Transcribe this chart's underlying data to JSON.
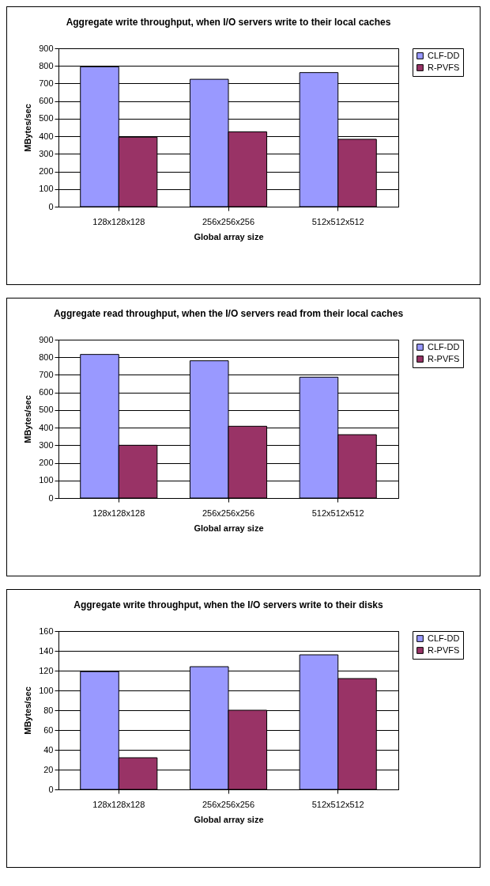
{
  "chart_data": [
    {
      "type": "bar",
      "title": "Aggregate write throughput, when I/O servers write to their local caches",
      "xlabel": "Global array size",
      "ylabel": "MBytes/sec",
      "categories": [
        "128x128x128",
        "256x256x256",
        "512x512x512"
      ],
      "ylim": [
        0,
        900
      ],
      "yticks": [
        0,
        100,
        200,
        300,
        400,
        500,
        600,
        700,
        800,
        900
      ],
      "grid": "y",
      "legend": "right",
      "series": [
        {
          "name": "CLF-DD",
          "color": "#9999ff",
          "values": [
            795,
            724,
            762
          ]
        },
        {
          "name": "R-PVFS",
          "color": "#993366",
          "values": [
            395,
            425,
            383
          ]
        }
      ]
    },
    {
      "type": "bar",
      "title": "Aggregate read throughput, when the I/O servers read from their local caches",
      "xlabel": "Global array size",
      "ylabel": "MBytes/sec",
      "categories": [
        "128x128x128",
        "256x256x256",
        "512x512x512"
      ],
      "ylim": [
        0,
        900
      ],
      "yticks": [
        0,
        100,
        200,
        300,
        400,
        500,
        600,
        700,
        800,
        900
      ],
      "grid": "y",
      "legend": "right",
      "series": [
        {
          "name": "CLF-DD",
          "color": "#9999ff",
          "values": [
            816,
            780,
            687
          ]
        },
        {
          "name": "R-PVFS",
          "color": "#993366",
          "values": [
            300,
            408,
            360
          ]
        }
      ]
    },
    {
      "type": "bar",
      "title": "Aggregate write throughput, when the I/O servers write to their disks",
      "xlabel": "Global array size",
      "ylabel": "MBytes/sec",
      "categories": [
        "128x128x128",
        "256x256x256",
        "512x512x512"
      ],
      "ylim": [
        0,
        160
      ],
      "yticks": [
        0,
        20,
        40,
        60,
        80,
        100,
        120,
        140,
        160
      ],
      "grid": "y",
      "legend": "right",
      "series": [
        {
          "name": "CLF-DD",
          "color": "#9999ff",
          "values": [
            119,
            124,
            136
          ]
        },
        {
          "name": "R-PVFS",
          "color": "#993366",
          "values": [
            32,
            80,
            112
          ]
        }
      ]
    }
  ]
}
